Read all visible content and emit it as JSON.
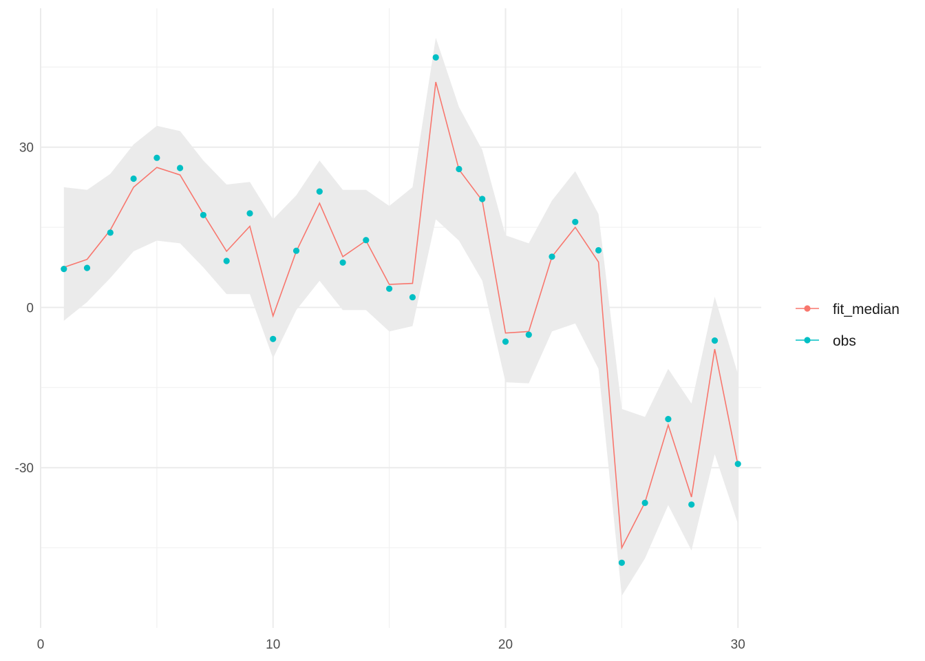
{
  "chart_data": {
    "type": "line",
    "title": "",
    "xlabel": "",
    "ylabel": "",
    "xlim": [
      0,
      31
    ],
    "ylim": [
      -60,
      56
    ],
    "x_ticks": [
      0,
      10,
      20,
      30
    ],
    "x_tick_labels": [
      "0",
      "10",
      "20",
      "30"
    ],
    "y_ticks": [
      -30,
      0,
      30
    ],
    "y_tick_labels": [
      "-30",
      "0",
      "30"
    ],
    "grid": true,
    "legend_position": "right",
    "x": [
      1,
      2,
      3,
      4,
      5,
      6,
      7,
      8,
      9,
      10,
      11,
      12,
      13,
      14,
      15,
      16,
      17,
      18,
      19,
      20,
      21,
      22,
      23,
      24,
      25,
      26,
      27,
      28,
      29,
      30
    ],
    "band": {
      "lower": [
        -2.5,
        1,
        5.5,
        10.5,
        12.5,
        12,
        7.5,
        2.5,
        2.5,
        -9.5,
        -0.5,
        5,
        -0.5,
        -0.5,
        -4.5,
        -3.5,
        16.5,
        12.5,
        5,
        -14,
        -14.2,
        -4.5,
        -3,
        -11.5,
        -54,
        -47,
        -37,
        -45.5,
        -27.5,
        -40.5
      ],
      "upper": [
        22.5,
        22,
        25,
        30.5,
        34,
        33,
        27.5,
        23,
        23.5,
        16.5,
        21,
        27.5,
        22,
        22,
        19,
        22.5,
        50.5,
        37.5,
        29.5,
        13.5,
        12,
        20,
        25.5,
        17.5,
        -19,
        -20.5,
        -11.5,
        -18,
        2,
        -12.5
      ],
      "color": "#ebebeb"
    },
    "series": [
      {
        "name": "fit_median",
        "color": "#f8766d",
        "values": [
          7.5,
          9,
          14.5,
          22.5,
          26.2,
          24.8,
          17.5,
          10.5,
          15.2,
          -1.6,
          10.5,
          19.5,
          9.5,
          12.5,
          4.3,
          4.5,
          42.2,
          25.8,
          20,
          -4.8,
          -4.5,
          9.5,
          15,
          8.5,
          -45,
          -36.5,
          -22,
          -35.5,
          -7.8,
          -29.5
        ]
      },
      {
        "name": "obs",
        "color": "#00bfc4",
        "values": [
          7.2,
          7.4,
          14,
          24.1,
          28,
          26.1,
          17.3,
          8.7,
          17.6,
          -5.9,
          10.6,
          21.7,
          8.4,
          12.6,
          3.5,
          1.9,
          46.8,
          25.9,
          20.3,
          -6.4,
          -5.1,
          9.5,
          16,
          10.7,
          -47.8,
          -36.6,
          -20.9,
          -36.9,
          -6.2,
          -29.3
        ]
      }
    ]
  }
}
